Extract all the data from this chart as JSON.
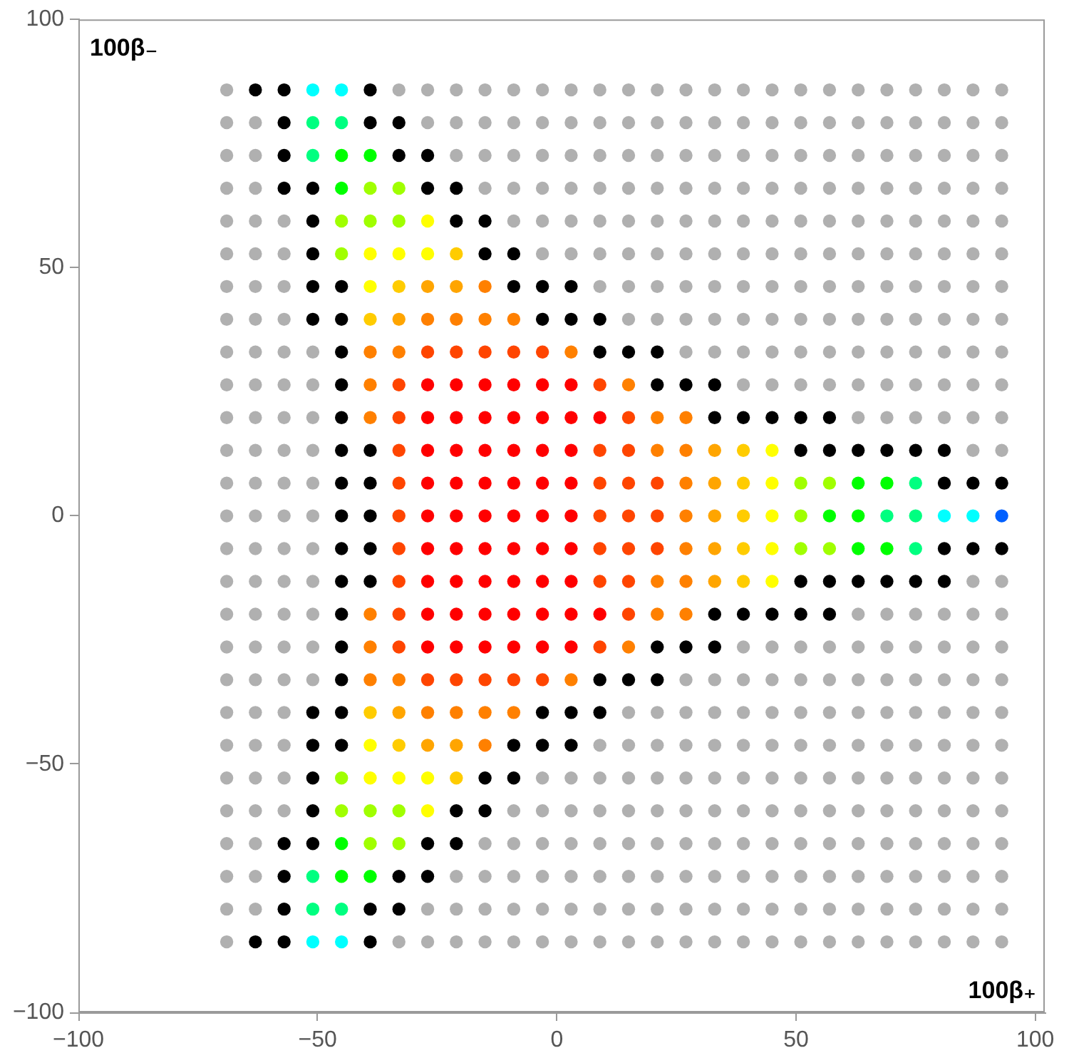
{
  "chart_data": {
    "type": "scatter",
    "xlabel": "100β₊",
    "ylabel": "100β₋",
    "xlim": [
      -100,
      102
    ],
    "ylim": [
      -100,
      100
    ],
    "xticks": [
      {
        "value": -100,
        "label": "−100"
      },
      {
        "value": -50,
        "label": "−50"
      },
      0,
      50,
      100
    ],
    "yticks": [
      {
        "value": -100,
        "label": "−100"
      },
      {
        "value": -50,
        "label": "−50"
      },
      0,
      50,
      100
    ],
    "legend": false,
    "marker": "circle",
    "series": [
      {
        "color": "#b0b0b0",
        "x": [
          -69,
          -33,
          -27,
          -21,
          -15,
          -9,
          -3,
          3,
          9,
          15,
          21,
          27,
          33,
          39,
          45,
          51,
          57,
          63,
          69,
          75,
          81,
          87,
          93,
          -69,
          -63,
          -27,
          -21,
          -15,
          -9,
          -3,
          3,
          9,
          15,
          21,
          27,
          33,
          39,
          45,
          51,
          57,
          63,
          69,
          75,
          81,
          87,
          93,
          -69,
          -63,
          -21,
          -15,
          -9,
          -3,
          3,
          9,
          15,
          21,
          27,
          33,
          39,
          45,
          51,
          57,
          63,
          69,
          75,
          81,
          87,
          93,
          -69,
          -63,
          -15,
          -9,
          -3,
          3,
          9,
          15,
          21,
          27,
          33,
          39,
          45,
          51,
          57,
          63,
          69,
          75,
          81,
          87,
          93,
          -69,
          -63,
          -57,
          -9,
          -3,
          3,
          9,
          15,
          21,
          27,
          33,
          39,
          45,
          51,
          57,
          63,
          69,
          75,
          81,
          87,
          93,
          -69,
          -63,
          -57,
          -3,
          3,
          9,
          15,
          21,
          27,
          33,
          39,
          45,
          51,
          57,
          63,
          69,
          75,
          81,
          87,
          93,
          -69,
          -63,
          -57,
          9,
          15,
          21,
          27,
          33,
          39,
          45,
          51,
          57,
          63,
          69,
          75,
          81,
          87,
          93,
          -69,
          -63,
          -57,
          15,
          21,
          27,
          33,
          39,
          45,
          51,
          57,
          63,
          69,
          75,
          81,
          87,
          93,
          -69,
          -63,
          -57,
          -51,
          27,
          33,
          39,
          45,
          51,
          57,
          63,
          69,
          75,
          81,
          87,
          93,
          -69,
          -63,
          -57,
          -51,
          39,
          45,
          51,
          57,
          63,
          69,
          75,
          81,
          87,
          93,
          -69,
          -63,
          -57,
          -51,
          63,
          69,
          75,
          81,
          87,
          93,
          -69,
          -63,
          -57,
          -51,
          87,
          93,
          -69,
          -63,
          -57,
          -51,
          -69,
          -63,
          -57,
          -51,
          -69,
          -63,
          -57,
          -51,
          -69,
          -63,
          -57,
          -51,
          87,
          93,
          -69,
          -63,
          -57,
          -51,
          63,
          69,
          75,
          81,
          87,
          93,
          -69,
          -63,
          -57,
          -51,
          39,
          45,
          51,
          57,
          63,
          69,
          75,
          81,
          87,
          93,
          -69,
          -63,
          -57,
          -51,
          27,
          33,
          39,
          45,
          51,
          57,
          63,
          69,
          75,
          81,
          87,
          93,
          -69,
          -63,
          -57,
          15,
          21,
          27,
          33,
          39,
          45,
          51,
          57,
          63,
          69,
          75,
          81,
          87,
          93,
          -69,
          -63,
          -57,
          9,
          15,
          21,
          27,
          33,
          39,
          45,
          51,
          57,
          63,
          69,
          75,
          81,
          87,
          93,
          -69,
          -63,
          -57,
          -3,
          3,
          9,
          15,
          21,
          27,
          33,
          39,
          45,
          51,
          57,
          63,
          69,
          75,
          81,
          87,
          93,
          -69,
          -63,
          -57,
          -9,
          -3,
          3,
          9,
          15,
          21,
          27,
          33,
          39,
          45,
          51,
          57,
          63,
          69,
          75,
          81,
          87,
          93,
          -69,
          -63,
          -15,
          -9,
          -3,
          3,
          9,
          15,
          21,
          27,
          33,
          39,
          45,
          51,
          57,
          63,
          69,
          75,
          81,
          87,
          93,
          -69,
          -63,
          -21,
          -15,
          -9,
          -3,
          3,
          9,
          15,
          21,
          27,
          33,
          39,
          45,
          51,
          57,
          63,
          69,
          75,
          81,
          87,
          93,
          -69,
          -63,
          -27,
          -21,
          -15,
          -9,
          -3,
          3,
          9,
          15,
          21,
          27,
          33,
          39,
          45,
          51,
          57,
          63,
          69,
          75,
          81,
          87,
          93,
          -69,
          -33,
          -27,
          -21,
          -15,
          -9,
          -3,
          3,
          9,
          15,
          21,
          27,
          33,
          39,
          45,
          51,
          57,
          63,
          69,
          75,
          81,
          87,
          93
        ],
        "values": [
          85.8,
          85.8,
          85.8,
          85.8,
          85.8,
          85.8,
          85.8,
          85.8,
          85.8,
          85.8,
          85.8,
          85.8,
          85.8,
          85.8,
          85.8,
          85.8,
          85.8,
          85.8,
          85.8,
          85.8,
          85.8,
          85.8,
          85.8,
          79.2,
          79.2,
          79.2,
          79.2,
          79.2,
          79.2,
          79.2,
          79.2,
          79.2,
          79.2,
          79.2,
          79.2,
          79.2,
          79.2,
          79.2,
          79.2,
          79.2,
          79.2,
          79.2,
          79.2,
          79.2,
          79.2,
          79.2,
          72.6,
          72.6,
          72.6,
          72.6,
          72.6,
          72.6,
          72.6,
          72.6,
          72.6,
          72.6,
          72.6,
          72.6,
          72.6,
          72.6,
          72.6,
          72.6,
          72.6,
          72.6,
          72.6,
          72.6,
          72.6,
          72.6,
          66,
          66,
          66,
          66,
          66,
          66,
          66,
          66,
          66,
          66,
          66,
          66,
          66,
          66,
          66,
          66,
          66,
          66,
          66,
          66,
          66,
          59.4,
          59.4,
          59.4,
          59.4,
          59.4,
          59.4,
          59.4,
          59.4,
          59.4,
          59.4,
          59.4,
          59.4,
          59.4,
          59.4,
          59.4,
          59.4,
          59.4,
          59.4,
          59.4,
          59.4,
          59.4,
          52.8,
          52.8,
          52.8,
          52.8,
          52.8,
          52.8,
          52.8,
          52.8,
          52.8,
          52.8,
          52.8,
          52.8,
          52.8,
          52.8,
          52.8,
          52.8,
          52.8,
          52.8,
          52.8,
          52.8,
          46.2,
          46.2,
          46.2,
          46.2,
          46.2,
          46.2,
          46.2,
          46.2,
          46.2,
          46.2,
          46.2,
          46.2,
          46.2,
          46.2,
          46.2,
          46.2,
          46.2,
          46.2,
          39.6,
          39.6,
          39.6,
          39.6,
          39.6,
          39.6,
          39.6,
          39.6,
          39.6,
          39.6,
          39.6,
          39.6,
          39.6,
          39.6,
          39.6,
          39.6,
          39.6,
          33,
          33,
          33,
          33,
          33,
          33,
          33,
          33,
          33,
          33,
          33,
          33,
          33,
          33,
          33,
          33,
          26.4,
          26.4,
          26.4,
          26.4,
          26.4,
          26.4,
          26.4,
          26.4,
          26.4,
          26.4,
          26.4,
          26.4,
          26.4,
          26.4,
          19.8,
          19.8,
          19.8,
          19.8,
          19.8,
          19.8,
          19.8,
          19.8,
          19.8,
          19.8,
          13.2,
          13.2,
          13.2,
          13.2,
          13.2,
          13.2,
          6.6,
          6.6,
          6.6,
          6.6,
          0,
          0,
          0,
          0,
          -6.6,
          -6.6,
          -6.6,
          -6.6,
          -13.2,
          -13.2,
          -13.2,
          -13.2,
          -13.2,
          -13.2,
          -19.8,
          -19.8,
          -19.8,
          -19.8,
          -19.8,
          -19.8,
          -19.8,
          -19.8,
          -19.8,
          -19.8,
          -26.4,
          -26.4,
          -26.4,
          -26.4,
          -26.4,
          -26.4,
          -26.4,
          -26.4,
          -26.4,
          -26.4,
          -26.4,
          -26.4,
          -26.4,
          -26.4,
          -33,
          -33,
          -33,
          -33,
          -33,
          -33,
          -33,
          -33,
          -33,
          -33,
          -33,
          -33,
          -33,
          -33,
          -33,
          -33,
          -39.6,
          -39.6,
          -39.6,
          -39.6,
          -39.6,
          -39.6,
          -39.6,
          -39.6,
          -39.6,
          -39.6,
          -39.6,
          -39.6,
          -39.6,
          -39.6,
          -39.6,
          -39.6,
          -39.6,
          -46.2,
          -46.2,
          -46.2,
          -46.2,
          -46.2,
          -46.2,
          -46.2,
          -46.2,
          -46.2,
          -46.2,
          -46.2,
          -46.2,
          -46.2,
          -46.2,
          -46.2,
          -46.2,
          -46.2,
          -46.2,
          -52.8,
          -52.8,
          -52.8,
          -52.8,
          -52.8,
          -52.8,
          -52.8,
          -52.8,
          -52.8,
          -52.8,
          -52.8,
          -52.8,
          -52.8,
          -52.8,
          -52.8,
          -52.8,
          -52.8,
          -52.8,
          -52.8,
          -52.8,
          -59.4,
          -59.4,
          -59.4,
          -59.4,
          -59.4,
          -59.4,
          -59.4,
          -59.4,
          -59.4,
          -59.4,
          -59.4,
          -59.4,
          -59.4,
          -59.4,
          -59.4,
          -59.4,
          -59.4,
          -59.4,
          -59.4,
          -59.4,
          -59.4,
          -66,
          -66,
          -66,
          -66,
          -66,
          -66,
          -66,
          -66,
          -66,
          -66,
          -66,
          -66,
          -66,
          -66,
          -66,
          -66,
          -66,
          -66,
          -66,
          -66,
          -66,
          -72.6,
          -72.6,
          -72.6,
          -72.6,
          -72.6,
          -72.6,
          -72.6,
          -72.6,
          -72.6,
          -72.6,
          -72.6,
          -72.6,
          -72.6,
          -72.6,
          -72.6,
          -72.6,
          -72.6,
          -72.6,
          -72.6,
          -72.6,
          -72.6,
          -72.6,
          -79.2,
          -79.2,
          -79.2,
          -79.2,
          -79.2,
          -79.2,
          -79.2,
          -79.2,
          -79.2,
          -79.2,
          -79.2,
          -79.2,
          -79.2,
          -79.2,
          -79.2,
          -79.2,
          -79.2,
          -79.2,
          -79.2,
          -79.2,
          -79.2,
          -79.2,
          -79.2,
          -85.8,
          -85.8,
          -85.8,
          -85.8,
          -85.8,
          -85.8,
          -85.8,
          -85.8,
          -85.8,
          -85.8,
          -85.8,
          -85.8,
          -85.8,
          -85.8,
          -85.8,
          -85.8,
          -85.8,
          -85.8,
          -85.8,
          -85.8,
          -85.8,
          -85.8,
          -85.8
        ]
      },
      {
        "color": "#000000",
        "x": [
          -63,
          -57,
          -39,
          -57,
          -39,
          -33,
          -57,
          -33,
          -27,
          -57,
          -51,
          -27,
          -21,
          -51,
          -21,
          -15,
          -51,
          -15,
          -9,
          -51,
          -45,
          -9,
          -3,
          3,
          -51,
          -45,
          -3,
          3,
          9,
          -45,
          9,
          15,
          21,
          -45,
          21,
          27,
          33,
          -45,
          33,
          39,
          45,
          51,
          57,
          -45,
          -39,
          51,
          57,
          63,
          69,
          75,
          81,
          -45,
          -39,
          81,
          87,
          93,
          -45,
          -39,
          -45,
          -39,
          81,
          87,
          93,
          -45,
          -39,
          51,
          57,
          63,
          69,
          75,
          81,
          -45,
          33,
          39,
          45,
          51,
          57,
          -45,
          21,
          27,
          33,
          -45,
          9,
          15,
          21,
          -51,
          -45,
          -3,
          3,
          9,
          -51,
          -45,
          -9,
          -3,
          3,
          -51,
          -15,
          -9,
          -51,
          -21,
          -15,
          -57,
          -51,
          -27,
          -21,
          -57,
          -33,
          -27,
          -57,
          -39,
          -33,
          -63,
          -57,
          -39
        ],
        "values": [
          85.8,
          85.8,
          85.8,
          79.2,
          79.2,
          79.2,
          72.6,
          72.6,
          72.6,
          66,
          66,
          66,
          66,
          59.4,
          59.4,
          59.4,
          52.8,
          52.8,
          52.8,
          46.2,
          46.2,
          46.2,
          46.2,
          46.2,
          39.6,
          39.6,
          39.6,
          39.6,
          39.6,
          33,
          33,
          33,
          33,
          26.4,
          26.4,
          26.4,
          26.4,
          19.8,
          19.8,
          19.8,
          19.8,
          19.8,
          19.8,
          13.2,
          13.2,
          13.2,
          13.2,
          13.2,
          13.2,
          13.2,
          13.2,
          6.6,
          6.6,
          6.6,
          6.6,
          6.6,
          0,
          0,
          -6.6,
          -6.6,
          -6.6,
          -6.6,
          -6.6,
          -13.2,
          -13.2,
          -13.2,
          -13.2,
          -13.2,
          -13.2,
          -13.2,
          -13.2,
          -19.8,
          -19.8,
          -19.8,
          -19.8,
          -19.8,
          -19.8,
          -26.4,
          -26.4,
          -26.4,
          -26.4,
          -33,
          -33,
          -33,
          -33,
          -39.6,
          -39.6,
          -39.6,
          -39.6,
          -39.6,
          -46.2,
          -46.2,
          -46.2,
          -46.2,
          -46.2,
          -52.8,
          -52.8,
          -52.8,
          -59.4,
          -59.4,
          -59.4,
          -66,
          -66,
          -66,
          -66,
          -72.6,
          -72.6,
          -72.6,
          -79.2,
          -79.2,
          -79.2,
          -85.8,
          -85.8,
          -85.8
        ]
      },
      {
        "color": "#ff0000",
        "x": [
          -27,
          -21,
          -15,
          -9,
          -3,
          3,
          -27,
          -21,
          -15,
          -9,
          -3,
          3,
          9,
          -27,
          -21,
          -15,
          -9,
          -3,
          3,
          -27,
          -21,
          -15,
          -9,
          -3,
          3,
          -27,
          -21,
          -15,
          -9,
          -3,
          3,
          -27,
          -21,
          -15,
          -9,
          -3,
          3,
          -27,
          -21,
          -15,
          -9,
          -3,
          3,
          -27,
          -21,
          -15,
          -9,
          -3,
          3,
          9,
          -27,
          -21,
          -15,
          -9,
          -3,
          3
        ],
        "values": [
          26.4,
          26.4,
          26.4,
          26.4,
          26.4,
          26.4,
          19.8,
          19.8,
          19.8,
          19.8,
          19.8,
          19.8,
          19.8,
          13.2,
          13.2,
          13.2,
          13.2,
          13.2,
          13.2,
          6.6,
          6.6,
          6.6,
          6.6,
          6.6,
          6.6,
          0,
          0,
          0,
          0,
          0,
          0,
          -6.6,
          -6.6,
          -6.6,
          -6.6,
          -6.6,
          -6.6,
          -13.2,
          -13.2,
          -13.2,
          -13.2,
          -13.2,
          -13.2,
          -19.8,
          -19.8,
          -19.8,
          -19.8,
          -19.8,
          -19.8,
          -19.8,
          -26.4,
          -26.4,
          -26.4,
          -26.4,
          -26.4,
          -26.4
        ]
      },
      {
        "color": "#ff4500",
        "x": [
          -27,
          -21,
          -15,
          -9,
          -3,
          -33,
          9,
          -33,
          15,
          -33,
          9,
          15,
          -33,
          9,
          15,
          21,
          -33,
          9,
          15,
          21,
          -33,
          9,
          15,
          21,
          -33,
          9,
          15,
          -33,
          15,
          -33,
          9,
          -27,
          -21,
          -15,
          -9,
          -3
        ],
        "values": [
          33,
          33,
          33,
          33,
          33,
          26.4,
          26.4,
          19.8,
          19.8,
          13.2,
          13.2,
          13.2,
          6.6,
          6.6,
          6.6,
          6.6,
          0,
          0,
          0,
          0,
          -6.6,
          -6.6,
          -6.6,
          -6.6,
          -13.2,
          -13.2,
          -13.2,
          -19.8,
          -19.8,
          -26.4,
          -26.4,
          -33,
          -33,
          -33,
          -33,
          -33
        ]
      },
      {
        "color": "#ff8000",
        "x": [
          -15,
          -27,
          -21,
          -15,
          -9,
          -39,
          -33,
          3,
          -39,
          15,
          -39,
          21,
          27,
          21,
          27,
          27,
          27,
          27,
          21,
          27,
          -39,
          21,
          27,
          -39,
          15,
          -39,
          -33,
          3,
          -27,
          -21,
          -15,
          -9,
          -15
        ],
        "values": [
          46.2,
          39.6,
          39.6,
          39.6,
          39.6,
          33,
          33,
          33,
          26.4,
          26.4,
          19.8,
          19.8,
          19.8,
          13.2,
          13.2,
          6.6,
          0,
          -6.6,
          -13.2,
          -13.2,
          -19.8,
          -19.8,
          -19.8,
          -26.4,
          -26.4,
          -33,
          -33,
          -33,
          -39.6,
          -39.6,
          -39.6,
          -39.6,
          -46.2
        ]
      },
      {
        "color": "#ffa500",
        "x": [
          -27,
          -21,
          -33,
          33,
          33,
          33,
          33,
          33,
          -33,
          -27,
          -21
        ],
        "values": [
          46.2,
          46.2,
          39.6,
          13.2,
          6.6,
          0,
          -6.6,
          -13.2,
          -39.6,
          -46.2,
          -46.2
        ]
      },
      {
        "color": "#ffcc00",
        "x": [
          -21,
          -33,
          -39,
          39,
          39,
          39,
          39,
          39,
          -39,
          -33,
          -21
        ],
        "values": [
          52.8,
          46.2,
          39.6,
          13.2,
          6.6,
          0,
          -6.6,
          -13.2,
          -39.6,
          -46.2,
          -52.8
        ]
      },
      {
        "color": "#ffff00",
        "x": [
          -27,
          -39,
          -33,
          -27,
          -39,
          45,
          45,
          45,
          45,
          45,
          -39,
          -39,
          -33,
          -27,
          -27
        ],
        "values": [
          59.4,
          52.8,
          52.8,
          52.8,
          46.2,
          13.2,
          6.6,
          0,
          -6.6,
          -13.2,
          -46.2,
          -52.8,
          -52.8,
          -52.8,
          -59.4
        ]
      },
      {
        "color": "#a0ff00",
        "x": [
          -39,
          -33,
          -45,
          -39,
          -33,
          -45,
          51,
          57,
          51,
          51,
          57,
          -45,
          -45,
          -39,
          -33,
          -39,
          -33
        ],
        "values": [
          66,
          66,
          59.4,
          59.4,
          59.4,
          52.8,
          6.6,
          6.6,
          0,
          -6.6,
          -6.6,
          -52.8,
          -59.4,
          -59.4,
          -59.4,
          -66,
          -66
        ]
      },
      {
        "color": "#00ff00",
        "x": [
          -45,
          -39,
          -45,
          63,
          69,
          57,
          63,
          63,
          69,
          -45,
          -45,
          -39
        ],
        "values": [
          72.6,
          72.6,
          66,
          6.6,
          6.6,
          0,
          0,
          -6.6,
          -6.6,
          -66,
          -72.6,
          -72.6
        ]
      },
      {
        "color": "#00ff80",
        "x": [
          -51,
          -45,
          -51,
          75,
          69,
          75,
          75,
          -51,
          -51,
          -45
        ],
        "values": [
          79.2,
          79.2,
          72.6,
          6.6,
          0,
          0,
          -6.6,
          -72.6,
          -79.2,
          -79.2
        ]
      },
      {
        "color": "#00ffff",
        "x": [
          -51,
          -45,
          81,
          87,
          -51,
          -45
        ],
        "values": [
          85.8,
          85.8,
          0,
          0,
          -85.8,
          -85.8
        ]
      },
      {
        "color": "#0060ff",
        "x": [
          93
        ],
        "values": [
          0
        ]
      }
    ]
  }
}
